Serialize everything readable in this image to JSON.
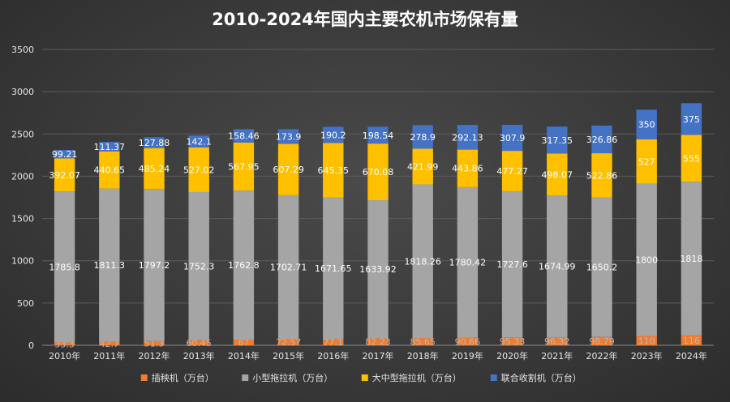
{
  "chart_data": {
    "type": "bar",
    "stacked": true,
    "title": "2010-2024年国内主要农机市场保有量",
    "xlabel": "",
    "ylabel": "",
    "ylim": [
      0,
      3500
    ],
    "yticks": [
      "0",
      "500",
      "1000",
      "1500",
      "2000",
      "2500",
      "3000",
      "3500"
    ],
    "grid": true,
    "legend_position": "bottom",
    "categories": [
      "2010年",
      "2011年",
      "2012年",
      "2013年",
      "2014年",
      "2015年",
      "2016年",
      "2017年",
      "2018年",
      "2019年",
      "2020年",
      "2021年",
      "2022年",
      "2023年",
      "2024年"
    ],
    "series": [
      {
        "name": "插秧机（万台）",
        "color": "#ed7d31",
        "values": [
          33.3,
          42.7,
          51.3,
          60.45,
          67,
          72.57,
          77.1,
          82.23,
          85.65,
          90.66,
          95.33,
          96.32,
          98.79,
          110,
          116
        ],
        "labels": [
          "33.3",
          "42.7",
          "51.3",
          "60.45",
          "67",
          "72.57",
          "77.1",
          "82.23",
          "85.65",
          "90.66",
          "95.33",
          "96.32",
          "98.79",
          "110",
          "116"
        ]
      },
      {
        "name": "小型拖拉机（万台）",
        "color": "#a5a5a5",
        "values": [
          1785.8,
          1811.3,
          1797.2,
          1752.3,
          1762.8,
          1702.71,
          1671.65,
          1633.92,
          1818.26,
          1780.42,
          1727.6,
          1674.99,
          1650.2,
          1800,
          1818
        ],
        "labels": [
          "1785.8",
          "1811.3",
          "1797.2",
          "1752.3",
          "1762.8",
          "1702.71",
          "1671.65",
          "1633.92",
          "1818.26",
          "1780.42",
          "1727.6",
          "1674.99",
          "1650.2",
          "1800",
          "1818"
        ]
      },
      {
        "name": "大中型拖拉机（万台）",
        "color": "#ffc000",
        "values": [
          392.07,
          440.65,
          485.24,
          527.02,
          567.95,
          607.29,
          645.35,
          670.08,
          421.99,
          443.86,
          477.27,
          498.07,
          522.86,
          527,
          555
        ],
        "labels": [
          "392.07",
          "440.65",
          "485.24",
          "527.02",
          "567.95",
          "607.29",
          "645.35",
          "670.08",
          "421.99",
          "443.86",
          "477.27",
          "498.07",
          "522.86",
          "527",
          "555"
        ]
      },
      {
        "name": "联合收割机（万台）",
        "color": "#4472c4",
        "values": [
          99.21,
          111.37,
          127.88,
          142.1,
          158.46,
          173.9,
          190.2,
          198.54,
          278.9,
          292.13,
          307.9,
          317.35,
          326.86,
          350,
          375
        ],
        "labels": [
          "99.21",
          "111.37",
          "127.88",
          "142.1",
          "158.46",
          "173.9",
          "190.2",
          "198.54",
          "278.9",
          "292.13",
          "307.9",
          "317.35",
          "326.86",
          "350",
          "375"
        ]
      }
    ]
  }
}
